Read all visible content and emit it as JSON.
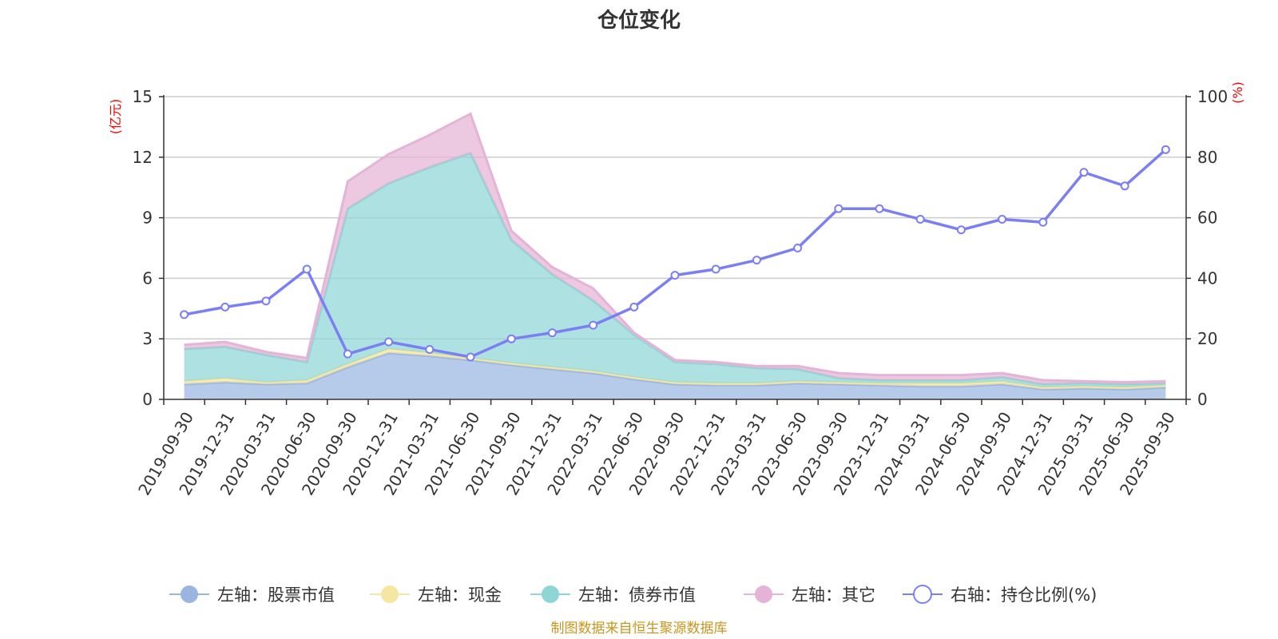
{
  "chart_data": {
    "type": "area",
    "title": "仓位变化",
    "left_axis": {
      "unit": "(亿元)",
      "min": 0,
      "max": 15,
      "ticks": [
        0,
        3,
        6,
        9,
        12,
        15
      ]
    },
    "right_axis": {
      "unit": "(%)",
      "min": 0,
      "max": 100,
      "ticks": [
        0,
        20,
        40,
        60,
        80,
        100
      ]
    },
    "categories": [
      "2019-09-30",
      "2019-12-31",
      "2020-03-31",
      "2020-06-30",
      "2020-09-30",
      "2020-12-31",
      "2021-03-31",
      "2021-06-30",
      "2021-09-30",
      "2021-12-31",
      "2022-03-31",
      "2022-06-30",
      "2022-09-30",
      "2022-12-31",
      "2023-03-31",
      "2023-06-30",
      "2023-09-30",
      "2023-12-31",
      "2024-03-31",
      "2024-06-30",
      "2024-09-30",
      "2024-12-31",
      "2025-03-31",
      "2025-06-30",
      "2025-09-30"
    ],
    "series": [
      {
        "name": "左轴：股票市值",
        "axis": "left",
        "stack": true,
        "color": "#9ab5e0",
        "values": [
          0.75,
          0.85,
          0.75,
          0.8,
          1.6,
          2.3,
          2.15,
          1.95,
          1.7,
          1.5,
          1.3,
          1.0,
          0.75,
          0.7,
          0.7,
          0.8,
          0.75,
          0.7,
          0.65,
          0.65,
          0.75,
          0.5,
          0.55,
          0.5,
          0.6
        ]
      },
      {
        "name": "左轴：现金",
        "axis": "left",
        "stack": true,
        "color": "#f5e6a3",
        "values": [
          0.15,
          0.2,
          0.1,
          0.15,
          0.15,
          0.2,
          0.15,
          0.1,
          0.1,
          0.1,
          0.1,
          0.1,
          0.1,
          0.1,
          0.1,
          0.1,
          0.1,
          0.1,
          0.15,
          0.15,
          0.15,
          0.1,
          0.1,
          0.1,
          0.1
        ]
      },
      {
        "name": "左轴：债券市值",
        "axis": "left",
        "stack": true,
        "color": "#8fd5d5",
        "values": [
          1.6,
          1.55,
          1.35,
          0.9,
          7.7,
          8.2,
          9.2,
          10.15,
          6.1,
          4.6,
          3.5,
          2.1,
          1.0,
          0.95,
          0.75,
          0.6,
          0.2,
          0.15,
          0.15,
          0.15,
          0.2,
          0.15,
          0.15,
          0.15,
          0.1
        ]
      },
      {
        "name": "左轴：其它",
        "axis": "left",
        "stack": true,
        "color": "#e5b3d6",
        "values": [
          0.2,
          0.25,
          0.15,
          0.2,
          1.35,
          1.45,
          1.6,
          1.95,
          0.45,
          0.35,
          0.6,
          0.1,
          0.1,
          0.1,
          0.1,
          0.15,
          0.25,
          0.25,
          0.25,
          0.25,
          0.2,
          0.2,
          0.1,
          0.1,
          0.1
        ]
      },
      {
        "name": "右轴：持仓比例(%)",
        "axis": "right",
        "type": "line",
        "color": "#7b7ff2",
        "values": [
          28,
          30.5,
          32.5,
          43,
          15,
          19,
          16.5,
          14,
          20,
          22,
          24.5,
          30.5,
          41,
          43,
          46,
          50,
          63,
          63,
          59.5,
          56,
          59.5,
          58.5,
          75,
          70.5,
          82.5
        ]
      }
    ],
    "legend_position": "bottom",
    "grid": true,
    "source": "制图数据来自恒生聚源数据库"
  }
}
